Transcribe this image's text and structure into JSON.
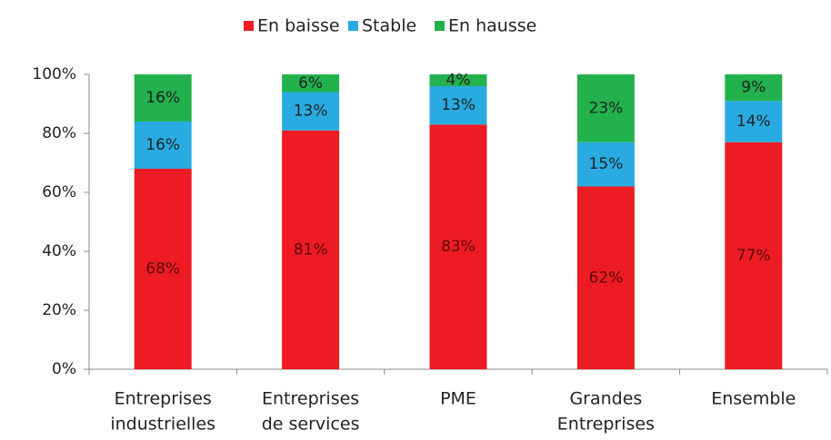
{
  "chart_data": {
    "type": "stacked-bar",
    "categories": [
      [
        "Entreprises",
        "industrielles"
      ],
      [
        "Entreprises",
        "de services"
      ],
      [
        "PME"
      ],
      [
        "Grandes",
        "Entreprises"
      ],
      [
        "Ensemble"
      ]
    ],
    "series": [
      {
        "name": "En baisse",
        "color": "#ed1c24",
        "values": [
          68,
          81,
          83,
          62,
          77
        ],
        "value_labels": [
          "68%",
          "81%",
          "83%",
          "62%",
          "77%"
        ]
      },
      {
        "name": "Stable",
        "color": "#29abe2",
        "values": [
          16,
          13,
          13,
          15,
          14
        ],
        "value_labels": [
          "16%",
          "13%",
          "13%",
          "15%",
          "14%"
        ]
      },
      {
        "name": "En hausse",
        "color": "#22b14c",
        "values": [
          16,
          6,
          4,
          23,
          9
        ],
        "value_labels": [
          "16%",
          "6%",
          "4%",
          "23%",
          "9%"
        ]
      }
    ],
    "ylim": [
      0,
      100
    ],
    "yticks": [
      {
        "value": 0,
        "label": "0%"
      },
      {
        "value": 20,
        "label": "20%"
      },
      {
        "value": 40,
        "label": "40%"
      },
      {
        "value": 60,
        "label": "60%"
      },
      {
        "value": 80,
        "label": "80%"
      },
      {
        "value": 100,
        "label": "100%"
      }
    ],
    "legend": "top"
  }
}
